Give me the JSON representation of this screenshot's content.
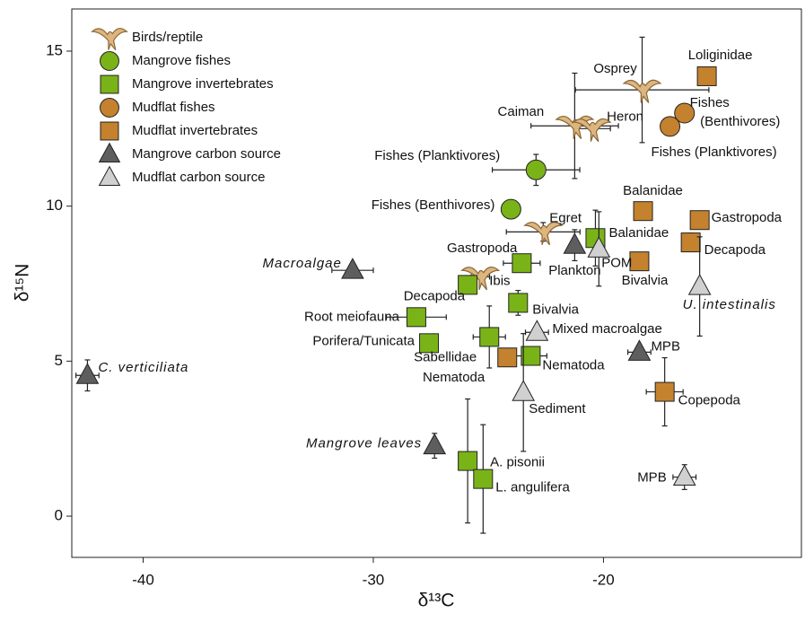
{
  "chart_data": {
    "type": "scatter",
    "xlabel": "δ¹³C",
    "ylabel": "δ¹⁵N",
    "xlim": [
      -43.1,
      -11.4
    ],
    "ylim": [
      -1.33,
      16.36
    ],
    "xticks": [
      -40,
      -30,
      -20
    ],
    "yticks": [
      0,
      5,
      10,
      15
    ],
    "legend": "upper left",
    "series": [
      {
        "name": "Birds/reptile",
        "color": "#dcb57f",
        "marker": "bird",
        "labels": [
          "Osprey",
          "Caiman",
          "Heron",
          "Egret",
          "Ibis"
        ],
        "x": [
          -18.32,
          -21.25,
          -20.5,
          -22.62,
          -25.35
        ],
        "y": [
          13.75,
          12.59,
          12.5,
          9.17,
          7.72
        ],
        "xerr": [
          2.9,
          1.9,
          0.8,
          1.6,
          0.4
        ],
        "yerr": [
          1.7,
          1.7,
          null,
          0.3,
          null
        ]
      },
      {
        "name": "Mangrove fishes",
        "color": "#7ab317",
        "marker": "circle",
        "labels": [
          "Fishes (Planktivores)",
          "Fishes (Benthivores)"
        ],
        "x": [
          -22.93,
          -24.02
        ],
        "y": [
          11.17,
          9.9
        ],
        "xerr": [
          1.9,
          null
        ],
        "yerr": [
          0.5,
          null
        ]
      },
      {
        "name": "Mangrove invertebrates",
        "color": "#7ab317",
        "marker": "square",
        "labels": [
          "Balanidae",
          "Gastropoda",
          "Decapoda",
          "Bivalvia",
          "Root meiofauna",
          "Porifera/Tunicata",
          "Sabellidae",
          "Nematoda",
          "A. pisonii",
          "L. angulifera"
        ],
        "x": [
          -20.35,
          -23.55,
          -25.9,
          -23.71,
          -28.13,
          -27.58,
          -24.96,
          -23.16,
          -25.9,
          -25.23
        ],
        "y": [
          8.97,
          8.16,
          7.46,
          6.88,
          6.42,
          5.58,
          5.78,
          5.17,
          1.78,
          1.2
        ],
        "xerr": [
          null,
          0.8,
          null,
          null,
          1.3,
          null,
          0.7,
          0.7,
          null,
          null
        ],
        "yerr": [
          0.9,
          null,
          null,
          0.4,
          null,
          null,
          1.0,
          null,
          2.0,
          1.75
        ]
      },
      {
        "name": "Mudflat fishes",
        "color": "#c4812e",
        "marker": "circle",
        "labels": [
          "Fishes (Benthivores)",
          "Fishes (Planktivores)"
        ],
        "x": [
          -16.48,
          -17.11
        ],
        "y": [
          13.0,
          12.57
        ],
        "xerr": [
          null,
          null
        ],
        "yerr": [
          null,
          null
        ]
      },
      {
        "name": "Mudflat invertebrates",
        "color": "#c4812e",
        "marker": "square",
        "labels": [
          "Loliginidae",
          "Balanidae",
          "Gastropoda",
          "Decapoda",
          "Bivalvia",
          "Nematoda",
          "Copepoda"
        ],
        "x": [
          -15.51,
          -18.28,
          -15.82,
          -16.21,
          -18.44,
          -24.18,
          -17.34
        ],
        "y": [
          14.19,
          9.84,
          9.55,
          8.83,
          8.22,
          5.12,
          4.01
        ],
        "xerr": [
          null,
          null,
          null,
          null,
          null,
          null,
          0.8
        ],
        "yerr": [
          null,
          null,
          null,
          0.3,
          null,
          null,
          1.1
        ]
      },
      {
        "name": "Mangrove carbon source",
        "color": "#5e5e5e",
        "marker": "triangle",
        "labels": [
          "C. verticiliata",
          "Macroalgae",
          "Mangrove leaves",
          "Plankton",
          "MPB"
        ],
        "label_italic": [
          true,
          true,
          true,
          false,
          false
        ],
        "x": [
          -42.42,
          -30.9,
          -27.34,
          -21.25,
          -18.44
        ],
        "y": [
          4.54,
          7.93,
          2.27,
          8.74,
          5.29
        ],
        "xerr": [
          0.5,
          0.9,
          null,
          null,
          0.5
        ],
        "yerr": [
          0.5,
          null,
          0.4,
          0.5,
          null
        ]
      },
      {
        "name": "Mudflat carbon source",
        "color": "#d0d0d0",
        "marker": "triangle",
        "labels": [
          "POM",
          "U. intestinalis",
          "Mixed macroalgae",
          "Sediment",
          "MPB"
        ],
        "label_italic": [
          false,
          true,
          false,
          false,
          false
        ],
        "x": [
          -20.2,
          -15.82,
          -22.89,
          -23.48,
          -16.48
        ],
        "y": [
          8.62,
          7.41,
          5.93,
          3.99,
          1.26
        ],
        "xerr": [
          null,
          null,
          0.5,
          null,
          0.5
        ],
        "yerr": [
          1.2,
          1.6,
          null,
          1.9,
          0.4
        ]
      }
    ]
  }
}
